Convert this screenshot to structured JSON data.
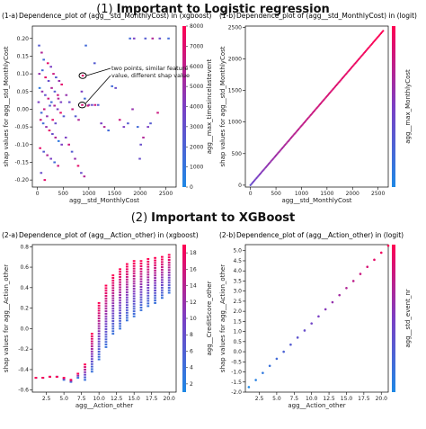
{
  "sections": [
    {
      "number": "(1)",
      "title": "Important to Logistic regression"
    },
    {
      "number": "(2)",
      "title": "Important to XGBoost"
    }
  ],
  "panel_tags": [
    "(1-a)",
    "(1-b)",
    "(2-a)",
    "(2-b)"
  ],
  "annotation": {
    "line1": "two points, similar feature",
    "line2": "value, different shap value"
  },
  "colors": {
    "low": "#1e88e5",
    "mid": "#7b3fc4",
    "high": "#ff0052",
    "frame": "#000000"
  },
  "chart_data": [
    {
      "type": "scatter",
      "title": "Dependence_plot of (agg__std_MonthlyCost) in (xgboost)",
      "xlabel": "agg__std_MonthlyCost",
      "ylabel": "shap values for agg__std_MonthlyCost",
      "colorbar_label": "agg__max_timesincelastevent",
      "xlim": [
        -100,
        2700
      ],
      "ylim": [
        -0.22,
        0.235
      ],
      "xticks": [
        0,
        500,
        1000,
        1500,
        2000,
        2500
      ],
      "yticks": [
        -0.2,
        -0.15,
        -0.1,
        -0.05,
        0.0,
        0.05,
        0.1,
        0.15,
        0.2
      ],
      "colorbar_range": [
        0,
        8000
      ],
      "colorbar_ticks": [
        0,
        1000,
        2000,
        3000,
        4000,
        5000,
        6000,
        7000,
        8000
      ],
      "highlighted_points": [
        {
          "x": 880,
          "y": 0.095
        },
        {
          "x": 870,
          "y": 0.012
        }
      ],
      "points": [
        [
          30,
          0.18,
          0.3
        ],
        [
          80,
          0.16,
          0.7
        ],
        [
          120,
          0.14,
          0.2
        ],
        [
          200,
          0.13,
          0.9
        ],
        [
          260,
          0.12,
          0.5
        ],
        [
          310,
          0.1,
          0.8
        ],
        [
          360,
          0.09,
          0.3
        ],
        [
          420,
          0.08,
          0.6
        ],
        [
          470,
          0.07,
          0.9
        ],
        [
          40,
          0.06,
          0.1
        ],
        [
          90,
          0.05,
          0.6
        ],
        [
          150,
          0.04,
          0.4
        ],
        [
          210,
          0.03,
          0.8
        ],
        [
          270,
          0.02,
          0.2
        ],
        [
          330,
          0.01,
          0.7
        ],
        [
          390,
          0.0,
          0.5
        ],
        [
          450,
          -0.01,
          0.9
        ],
        [
          510,
          -0.02,
          0.3
        ],
        [
          60,
          -0.03,
          0.8
        ],
        [
          110,
          -0.04,
          0.2
        ],
        [
          170,
          -0.05,
          0.6
        ],
        [
          230,
          -0.06,
          0.9
        ],
        [
          290,
          -0.07,
          0.4
        ],
        [
          350,
          -0.08,
          0.7
        ],
        [
          410,
          -0.09,
          0.1
        ],
        [
          470,
          -0.1,
          0.5
        ],
        [
          50,
          -0.11,
          0.9
        ],
        [
          120,
          -0.12,
          0.3
        ],
        [
          190,
          -0.13,
          0.7
        ],
        [
          260,
          -0.14,
          0.5
        ],
        [
          330,
          -0.15,
          0.2
        ],
        [
          400,
          -0.16,
          0.8
        ],
        [
          70,
          -0.18,
          0.4
        ],
        [
          140,
          -0.2,
          0.9
        ],
        [
          20,
          0.02,
          0.5
        ],
        [
          75,
          -0.01,
          0.2
        ],
        [
          130,
          0.0,
          0.8
        ],
        [
          185,
          -0.02,
          0.6
        ],
        [
          240,
          0.01,
          0.3
        ],
        [
          295,
          -0.03,
          0.9
        ],
        [
          350,
          -0.04,
          0.4
        ],
        [
          405,
          0.03,
          0.7
        ],
        [
          35,
          0.1,
          0.6
        ],
        [
          95,
          0.11,
          0.2
        ],
        [
          155,
          0.09,
          0.9
        ],
        [
          215,
          0.08,
          0.4
        ],
        [
          275,
          0.06,
          0.7
        ],
        [
          335,
          0.05,
          0.3
        ],
        [
          395,
          0.04,
          0.8
        ],
        [
          455,
          0.02,
          0.5
        ],
        [
          560,
          0.04,
          0.6
        ],
        [
          620,
          0.02,
          0.4
        ],
        [
          680,
          0.0,
          0.8
        ],
        [
          740,
          -0.02,
          0.3
        ],
        [
          800,
          -0.03,
          0.7
        ],
        [
          860,
          0.05,
          0.5
        ],
        [
          920,
          0.03,
          0.2
        ],
        [
          980,
          0.01,
          0.9
        ],
        [
          550,
          -0.08,
          0.5
        ],
        [
          610,
          -0.1,
          0.8
        ],
        [
          670,
          -0.12,
          0.3
        ],
        [
          730,
          -0.14,
          0.6
        ],
        [
          790,
          -0.16,
          0.9
        ],
        [
          850,
          -0.18,
          0.4
        ],
        [
          910,
          -0.19,
          0.7
        ],
        [
          1000,
          0.012,
          0.6
        ],
        [
          1060,
          0.012,
          0.4
        ],
        [
          1120,
          0.012,
          0.8
        ],
        [
          1180,
          0.012,
          0.3
        ],
        [
          1240,
          -0.04,
          0.5
        ],
        [
          1300,
          -0.05,
          0.7
        ],
        [
          1380,
          -0.06,
          0.2
        ],
        [
          1450,
          0.065,
          0.2
        ],
        [
          1520,
          0.06,
          0.4
        ],
        [
          1600,
          -0.03,
          0.8
        ],
        [
          1680,
          -0.05,
          0.5
        ],
        [
          1760,
          -0.04,
          0.3
        ],
        [
          1850,
          0.0,
          0.6
        ],
        [
          1950,
          -0.05,
          0.2
        ],
        [
          2010,
          -0.1,
          0.4
        ],
        [
          2060,
          -0.08,
          0.7
        ],
        [
          2150,
          -0.05,
          0.5
        ],
        [
          2200,
          -0.04,
          0.3
        ],
        [
          2340,
          -0.01,
          0.8
        ],
        [
          1800,
          0.2,
          0.2
        ],
        [
          1880,
          0.2,
          0.5
        ],
        [
          2100,
          0.2,
          0.3
        ],
        [
          2240,
          0.2,
          0.7
        ],
        [
          2380,
          0.2,
          0.4
        ],
        [
          2550,
          0.2,
          0.2
        ],
        [
          880,
          0.095,
          0.9
        ],
        [
          870,
          0.012,
          0.85
        ],
        [
          940,
          0.18,
          0.2
        ],
        [
          1110,
          0.13,
          0.3
        ],
        [
          1990,
          -0.14,
          0.4
        ]
      ]
    },
    {
      "type": "scatter",
      "title": "Dependence_plot of (agg__std_MonthlyCost) in (logit)",
      "xlabel": "agg__std_MonthlyCost",
      "ylabel": "shap values for agg__std_MonthlyCost",
      "colorbar_label": "agg__max_MonthlyCost",
      "xlim": [
        -100,
        2700
      ],
      "ylim": [
        -30,
        2520
      ],
      "xticks": [
        0,
        500,
        1000,
        1500,
        2000,
        2500
      ],
      "yticks": [
        0,
        500,
        1000,
        1500,
        2000,
        2500
      ],
      "relation": {
        "x_start": 0,
        "x_end": 2600,
        "slope": 0.94,
        "intercept": 0
      }
    },
    {
      "type": "scatter",
      "title": "Dependence_plot of (agg__Action_other) in (xgboost)",
      "xlabel": "agg__Action_other",
      "ylabel": "shap values for agg__Action_other",
      "colorbar_label": "agg__CreditScore_other",
      "xlim": [
        0.5,
        21
      ],
      "ylim": [
        -0.62,
        0.82
      ],
      "xticks": [
        2.5,
        5.0,
        7.5,
        10.0,
        12.5,
        15.0,
        17.5,
        20.0
      ],
      "yticks": [
        -0.6,
        -0.4,
        -0.2,
        0.0,
        0.2,
        0.4,
        0.6,
        0.8
      ],
      "colorbar_range": [
        1,
        19
      ],
      "colorbar_ticks": [
        2,
        4,
        6,
        8,
        10,
        12,
        14,
        16,
        18
      ],
      "columns": [
        [
          1,
          -0.48,
          -0.48
        ],
        [
          2,
          -0.48,
          -0.48
        ],
        [
          3,
          -0.47,
          -0.47
        ],
        [
          4,
          -0.47,
          -0.47
        ],
        [
          5,
          -0.5,
          -0.48
        ],
        [
          6,
          -0.52,
          -0.5
        ],
        [
          7,
          -0.48,
          -0.44
        ],
        [
          8,
          -0.5,
          -0.35
        ],
        [
          9,
          -0.42,
          -0.05
        ],
        [
          10,
          -0.3,
          0.25
        ],
        [
          11,
          -0.18,
          0.42
        ],
        [
          12,
          -0.05,
          0.52
        ],
        [
          13,
          0.0,
          0.58
        ],
        [
          14,
          0.08,
          0.63
        ],
        [
          15,
          0.12,
          0.66
        ],
        [
          16,
          0.18,
          0.66
        ],
        [
          17,
          0.22,
          0.68
        ],
        [
          18,
          0.25,
          0.69
        ],
        [
          19,
          0.3,
          0.7
        ],
        [
          20,
          0.35,
          0.72
        ]
      ]
    },
    {
      "type": "scatter",
      "title": "Dependence_plot of (agg__Action_other) in (logit)",
      "xlabel": "agg__Action_other",
      "ylabel": "shap values for agg__Action_other",
      "colorbar_label": "agg__std_event_nr",
      "xlim": [
        0.5,
        21
      ],
      "ylim": [
        -2.0,
        5.3
      ],
      "xticks": [
        2.5,
        5.0,
        7.5,
        10.0,
        12.5,
        15.0,
        17.5,
        20.0
      ],
      "yticks": [
        -2.0,
        -1.5,
        -1.0,
        -0.5,
        0.0,
        0.5,
        1.0,
        1.5,
        2.0,
        2.5,
        3.0,
        3.5,
        4.0,
        4.5,
        5.0
      ],
      "points_x": [
        1,
        2,
        3,
        4,
        5,
        6,
        7,
        8,
        9,
        10,
        11,
        12,
        13,
        14,
        15,
        16,
        17,
        18,
        19,
        20,
        21
      ],
      "slope": 0.35,
      "intercept": -2.1
    }
  ]
}
